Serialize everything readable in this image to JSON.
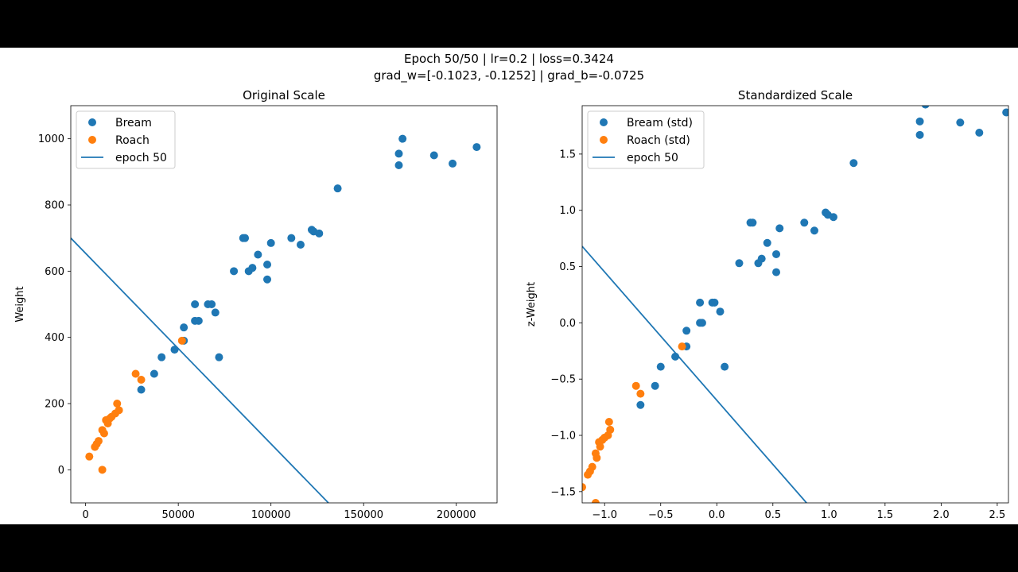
{
  "suptitle": {
    "line1": "Epoch 50/50 | lr=0.2 | loss=0.3424",
    "line2": "grad_w=[-0.1023, -0.1252] | grad_b=-0.0725"
  },
  "colors": {
    "bream": "#1f77b4",
    "roach": "#ff7f0e",
    "line": "#1f77b4"
  },
  "chart_data": [
    {
      "type": "scatter",
      "title": "Original Scale",
      "xlabel": "",
      "ylabel": "Weight",
      "xlim": [
        -8000,
        222000
      ],
      "ylim": [
        -100,
        1100
      ],
      "xticks": [
        0,
        50000,
        100000,
        150000,
        200000
      ],
      "yticks": [
        0,
        200,
        400,
        600,
        800,
        1000
      ],
      "legend": {
        "placement": "top-left",
        "entries": [
          "Bream",
          "Roach",
          "epoch 50"
        ]
      },
      "series": [
        {
          "name": "Bream",
          "color": "#1f77b4",
          "points": [
            [
              30000,
              242
            ],
            [
              37000,
              290
            ],
            [
              41000,
              340
            ],
            [
              48000,
              363
            ],
            [
              53000,
              430
            ],
            [
              53000,
              390
            ],
            [
              59000,
              450
            ],
            [
              61000,
              450
            ],
            [
              59000,
              500
            ],
            [
              66000,
              500
            ],
            [
              68000,
              500
            ],
            [
              70000,
              475
            ],
            [
              72000,
              340
            ],
            [
              80000,
              600
            ],
            [
              85000,
              700
            ],
            [
              86000,
              700
            ],
            [
              88000,
              600
            ],
            [
              90000,
              610
            ],
            [
              93000,
              650
            ],
            [
              98000,
              575
            ],
            [
              98000,
              620
            ],
            [
              100000,
              685
            ],
            [
              111000,
              700
            ],
            [
              116000,
              680
            ],
            [
              122000,
              725
            ],
            [
              123000,
              720
            ],
            [
              126000,
              714
            ],
            [
              136000,
              850
            ],
            [
              169000,
              920
            ],
            [
              169000,
              955
            ],
            [
              171000,
              1000
            ],
            [
              188000,
              950
            ],
            [
              198000,
              925
            ],
            [
              211000,
              975
            ]
          ]
        },
        {
          "name": "Roach",
          "color": "#ff7f0e",
          "points": [
            [
              2000,
              40
            ],
            [
              5000,
              69
            ],
            [
              6000,
              78
            ],
            [
              7000,
              87
            ],
            [
              9000,
              120
            ],
            [
              9000,
              0
            ],
            [
              10000,
              110
            ],
            [
              11000,
              150
            ],
            [
              12000,
              140
            ],
            [
              13000,
              155
            ],
            [
              14000,
              160
            ],
            [
              16000,
              170
            ],
            [
              17000,
              200
            ],
            [
              18000,
              180
            ],
            [
              27000,
              290
            ],
            [
              30000,
              272
            ],
            [
              52000,
              390
            ]
          ]
        }
      ],
      "lines": [
        {
          "name": "epoch 50",
          "color": "#1f77b4",
          "points": [
            [
              -8000,
              700
            ],
            [
              131000,
              -100
            ]
          ]
        }
      ]
    },
    {
      "type": "scatter",
      "title": "Standardized Scale",
      "xlabel": "",
      "ylabel": "z-Weight",
      "xlim": [
        -1.2,
        2.6
      ],
      "ylim": [
        -1.6,
        1.93
      ],
      "xticks": [
        -1.0,
        -0.5,
        0.0,
        0.5,
        1.0,
        1.5,
        2.0,
        2.5
      ],
      "xtick_labels": [
        "−1.0",
        "−0.5",
        "0.0",
        "0.5",
        "1.0",
        "1.5",
        "2.0",
        "2.5"
      ],
      "yticks": [
        -1.5,
        -1.0,
        -0.5,
        0.0,
        0.5,
        1.0,
        1.5
      ],
      "ytick_labels": [
        "−1.5",
        "−1.0",
        "−0.5",
        "0.0",
        "0.5",
        "1.0",
        "1.5"
      ],
      "legend": {
        "placement": "top-left",
        "entries": [
          "Bream (std)",
          "Roach (std)",
          "epoch 50"
        ]
      },
      "series": [
        {
          "name": "Bream (std)",
          "color": "#1f77b4",
          "points": [
            [
              -0.68,
              -0.73
            ],
            [
              -0.55,
              -0.56
            ],
            [
              -0.5,
              -0.39
            ],
            [
              -0.37,
              -0.3
            ],
            [
              -0.27,
              -0.21
            ],
            [
              -0.27,
              -0.07
            ],
            [
              -0.15,
              0.0
            ],
            [
              -0.13,
              0.0
            ],
            [
              -0.15,
              0.18
            ],
            [
              -0.04,
              0.18
            ],
            [
              -0.02,
              0.18
            ],
            [
              0.03,
              0.1
            ],
            [
              0.07,
              -0.39
            ],
            [
              0.2,
              0.53
            ],
            [
              0.3,
              0.89
            ],
            [
              0.32,
              0.89
            ],
            [
              0.37,
              0.53
            ],
            [
              0.4,
              0.57
            ],
            [
              0.45,
              0.71
            ],
            [
              0.53,
              0.45
            ],
            [
              0.53,
              0.61
            ],
            [
              0.56,
              0.84
            ],
            [
              0.78,
              0.89
            ],
            [
              0.87,
              0.82
            ],
            [
              0.97,
              0.98
            ],
            [
              0.99,
              0.96
            ],
            [
              1.04,
              0.94
            ],
            [
              1.22,
              1.42
            ],
            [
              1.81,
              1.67
            ],
            [
              1.81,
              1.79
            ],
            [
              1.86,
              1.94
            ],
            [
              2.17,
              1.78
            ],
            [
              2.34,
              1.69
            ],
            [
              2.58,
              1.87
            ]
          ]
        },
        {
          "name": "Roach (std)",
          "color": "#ff7f0e",
          "points": [
            [
              -1.2,
              -1.46
            ],
            [
              -1.15,
              -1.35
            ],
            [
              -1.13,
              -1.32
            ],
            [
              -1.11,
              -1.28
            ],
            [
              -1.08,
              -1.16
            ],
            [
              -1.08,
              -1.6
            ],
            [
              -1.07,
              -1.2
            ],
            [
              -1.05,
              -1.06
            ],
            [
              -1.04,
              -1.1
            ],
            [
              -1.02,
              -1.04
            ],
            [
              -1.0,
              -1.02
            ],
            [
              -0.97,
              -1.0
            ],
            [
              -0.96,
              -0.88
            ],
            [
              -0.95,
              -0.95
            ],
            [
              -0.72,
              -0.56
            ],
            [
              -0.68,
              -0.63
            ],
            [
              -0.31,
              -0.21
            ]
          ]
        }
      ],
      "lines": [
        {
          "name": "epoch 50",
          "color": "#1f77b4",
          "points": [
            [
              -1.2,
              0.68
            ],
            [
              0.8,
              -1.6
            ]
          ]
        }
      ]
    }
  ]
}
